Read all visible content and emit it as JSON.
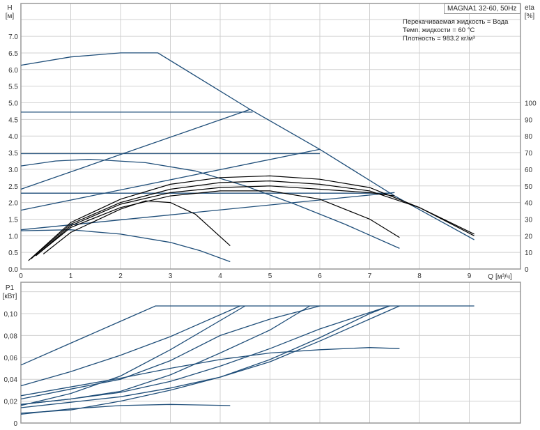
{
  "chart_data": [
    {
      "type": "line",
      "title": "",
      "ylabel": "H",
      "yunit": "[м]",
      "xlabel": "Q",
      "xunit": "[м³/ч]",
      "xlim": [
        0,
        10
      ],
      "ylim": [
        0,
        7.5
      ],
      "grid": true,
      "xticks": [
        "0",
        "1",
        "2",
        "3",
        "4",
        "5",
        "6",
        "7",
        "8",
        "9"
      ],
      "yticks": [
        "0.0",
        "0.5",
        "1.0",
        "1.5",
        "2.0",
        "2.5",
        "3.0",
        "3.5",
        "4.0",
        "4.5",
        "5.0",
        "5.5",
        "6.0",
        "6.5",
        "7.0"
      ],
      "y2label": "eta",
      "y2unit": "[%]",
      "y2lim": [
        0,
        150
      ],
      "y2ticks": [
        "0",
        "10",
        "20",
        "30",
        "40",
        "50",
        "60",
        "70",
        "80",
        "90",
        "100"
      ],
      "series_head": [
        [
          [
            0,
            6.13
          ],
          [
            1,
            6.38
          ],
          [
            2,
            6.5
          ],
          [
            2.75,
            6.5
          ],
          [
            4.6,
            4.8
          ],
          [
            6,
            3.6
          ],
          [
            7.5,
            2.2
          ],
          [
            9.1,
            0.88
          ]
        ],
        [
          [
            0,
            4.72
          ],
          [
            4.65,
            4.72
          ]
        ],
        [
          [
            0,
            3.47
          ],
          [
            6,
            3.47
          ]
        ],
        [
          [
            0,
            2.28
          ],
          [
            7.45,
            2.28
          ]
        ],
        [
          [
            0,
            2.4
          ],
          [
            4.6,
            4.8
          ]
        ],
        [
          [
            0,
            1.77
          ],
          [
            6,
            3.6
          ]
        ],
        [
          [
            0,
            1.18
          ],
          [
            7.5,
            2.3
          ]
        ],
        [
          [
            0,
            3.1
          ],
          [
            0.7,
            3.25
          ],
          [
            1.4,
            3.3
          ],
          [
            2.5,
            3.2
          ],
          [
            3.5,
            2.95
          ],
          [
            4.5,
            2.5
          ],
          [
            5.5,
            1.95
          ],
          [
            6.5,
            1.35
          ],
          [
            7.6,
            0.62
          ]
        ],
        [
          [
            0,
            1.15
          ],
          [
            1,
            1.18
          ],
          [
            2,
            1.05
          ],
          [
            3,
            0.8
          ],
          [
            3.6,
            0.55
          ],
          [
            4.2,
            0.22
          ]
        ]
      ],
      "series_eta": [
        [
          [
            0.15,
            5
          ],
          [
            1,
            28
          ],
          [
            2,
            42
          ],
          [
            3,
            51
          ],
          [
            4,
            55
          ],
          [
            5,
            56
          ],
          [
            6,
            54
          ],
          [
            7,
            49
          ],
          [
            8,
            37
          ],
          [
            9.1,
            21
          ]
        ],
        [
          [
            0.2,
            6
          ],
          [
            1,
            27
          ],
          [
            2,
            40
          ],
          [
            3,
            48
          ],
          [
            4,
            52
          ],
          [
            5,
            53
          ],
          [
            6,
            51
          ],
          [
            7,
            47
          ],
          [
            8,
            37
          ],
          [
            9.1,
            20
          ]
        ],
        [
          [
            0.3,
            8
          ],
          [
            1,
            26
          ],
          [
            2,
            39
          ],
          [
            3,
            46
          ],
          [
            4,
            49
          ],
          [
            5,
            50
          ],
          [
            6,
            48
          ],
          [
            7,
            46
          ],
          [
            7.5,
            44
          ]
        ],
        [
          [
            0.3,
            8
          ],
          [
            1,
            25
          ],
          [
            2,
            37
          ],
          [
            3,
            44
          ],
          [
            4,
            47
          ],
          [
            5,
            47
          ],
          [
            6,
            42
          ],
          [
            7,
            30
          ],
          [
            7.6,
            19
          ]
        ],
        [
          [
            0.45,
            9
          ],
          [
            1,
            22
          ],
          [
            2,
            36
          ],
          [
            2.5,
            41
          ],
          [
            3,
            40
          ],
          [
            3.5,
            33
          ],
          [
            4.2,
            14
          ]
        ]
      ]
    },
    {
      "type": "line",
      "title": "",
      "ylabel": "P1",
      "yunit": "[кВт]",
      "xlim": [
        0,
        10
      ],
      "ylim": [
        0,
        0.12
      ],
      "grid": true,
      "yticks": [
        "0",
        "0,02",
        "0,04",
        "0,06",
        "0,08",
        "0,10"
      ],
      "series": [
        [
          [
            0,
            0.053
          ],
          [
            1,
            0.073
          ],
          [
            2,
            0.093
          ],
          [
            2.7,
            0.107
          ],
          [
            9.1,
            0.107
          ]
        ],
        [
          [
            0,
            0.034
          ],
          [
            1,
            0.047
          ],
          [
            2,
            0.062
          ],
          [
            3,
            0.079
          ],
          [
            4.4,
            0.107
          ]
        ],
        [
          [
            0,
            0.025
          ],
          [
            1,
            0.033
          ],
          [
            2,
            0.041
          ],
          [
            3,
            0.05
          ],
          [
            4,
            0.058
          ],
          [
            5,
            0.064
          ],
          [
            6,
            0.067
          ],
          [
            7,
            0.069
          ],
          [
            7.6,
            0.068
          ]
        ],
        [
          [
            0,
            0.016
          ],
          [
            1,
            0.027
          ],
          [
            2,
            0.043
          ],
          [
            3,
            0.067
          ],
          [
            4.5,
            0.107
          ]
        ],
        [
          [
            0,
            0.022
          ],
          [
            1,
            0.031
          ],
          [
            2,
            0.04
          ],
          [
            3,
            0.057
          ],
          [
            4,
            0.08
          ],
          [
            5,
            0.095
          ],
          [
            6,
            0.107
          ]
        ],
        [
          [
            0,
            0.017
          ],
          [
            1,
            0.022
          ],
          [
            2,
            0.029
          ],
          [
            3,
            0.044
          ],
          [
            4,
            0.064
          ],
          [
            5,
            0.085
          ],
          [
            5.8,
            0.107
          ]
        ],
        [
          [
            0,
            0.017
          ],
          [
            1,
            0.022
          ],
          [
            2,
            0.028
          ],
          [
            3,
            0.038
          ],
          [
            4,
            0.052
          ],
          [
            5,
            0.068
          ],
          [
            6,
            0.086
          ],
          [
            7.4,
            0.107
          ]
        ],
        [
          [
            0,
            0.014
          ],
          [
            1,
            0.019
          ],
          [
            2,
            0.024
          ],
          [
            3,
            0.032
          ],
          [
            4,
            0.042
          ],
          [
            5,
            0.056
          ],
          [
            6,
            0.075
          ],
          [
            7,
            0.095
          ],
          [
            7.6,
            0.107
          ]
        ],
        [
          [
            0,
            0.009
          ],
          [
            1,
            0.012
          ],
          [
            2,
            0.02
          ],
          [
            3,
            0.03
          ],
          [
            4,
            0.042
          ],
          [
            5,
            0.058
          ],
          [
            6,
            0.078
          ],
          [
            7,
            0.1
          ],
          [
            7.4,
            0.107
          ]
        ],
        [
          [
            0,
            0.008
          ],
          [
            1,
            0.013
          ],
          [
            2,
            0.016
          ],
          [
            3,
            0.017
          ],
          [
            4.2,
            0.016
          ]
        ]
      ]
    }
  ],
  "info": {
    "model": "MAGNA1 32-60, 50Hz",
    "liquid": "Перекачиваемая жидкость = Вода",
    "temp": "Темп. жидкости = 60 °C",
    "density": "Плотность = 983.2 кг/м³"
  },
  "colors": {
    "curve": "#1f4e79",
    "eta": "#000000",
    "grid": "#d0d0d0",
    "frame": "#999999"
  }
}
